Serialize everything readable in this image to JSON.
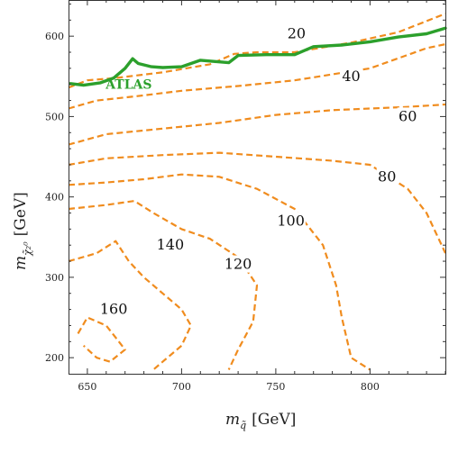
{
  "chart_data": {
    "type": "line",
    "title": "",
    "xlabel": "m",
    "xlabel_sub": "q̃",
    "xlabel_unit": "[GeV]",
    "ylabel": "m",
    "ylabel_sub": "χ̃₂⁰",
    "ylabel_unit": "[GeV]",
    "xlim": [
      640,
      840
    ],
    "ylim": [
      180,
      645
    ],
    "x_ticks": [
      650,
      700,
      750,
      800
    ],
    "y_ticks": [
      200,
      300,
      400,
      500,
      600
    ],
    "grid": false,
    "colors": {
      "contour": "#f08c1e",
      "atlas": "#2ca02c"
    },
    "contours": [
      {
        "label": "20",
        "label_at": [
          761,
          603
        ],
        "points": [
          [
            640,
            536
          ],
          [
            650,
            545
          ],
          [
            665,
            548
          ],
          [
            690,
            555
          ],
          [
            715,
            565
          ],
          [
            728,
            578
          ],
          [
            740,
            580
          ],
          [
            760,
            580
          ],
          [
            790,
            592
          ],
          [
            815,
            605
          ],
          [
            840,
            628
          ]
        ]
      },
      {
        "label": "40",
        "label_at": [
          790,
          550
        ],
        "points": [
          [
            640,
            510
          ],
          [
            655,
            520
          ],
          [
            675,
            525
          ],
          [
            700,
            532
          ],
          [
            730,
            538
          ],
          [
            760,
            545
          ],
          [
            800,
            560
          ],
          [
            830,
            585
          ],
          [
            840,
            590
          ]
        ]
      },
      {
        "label": "60",
        "label_at": [
          820,
          500
        ],
        "points": [
          [
            640,
            465
          ],
          [
            660,
            478
          ],
          [
            690,
            485
          ],
          [
            720,
            492
          ],
          [
            750,
            502
          ],
          [
            780,
            508
          ],
          [
            800,
            510
          ],
          [
            820,
            512
          ],
          [
            840,
            515
          ]
        ]
      },
      {
        "label": "80",
        "label_at": [
          809,
          425
        ],
        "points": [
          [
            640,
            440
          ],
          [
            660,
            448
          ],
          [
            690,
            452
          ],
          [
            720,
            455
          ],
          [
            750,
            450
          ],
          [
            780,
            445
          ],
          [
            800,
            440
          ],
          [
            820,
            410
          ],
          [
            830,
            380
          ],
          [
            840,
            330
          ]
        ]
      },
      {
        "label": "100",
        "label_at": [
          758,
          370
        ],
        "points": [
          [
            640,
            415
          ],
          [
            660,
            418
          ],
          [
            680,
            422
          ],
          [
            700,
            428
          ],
          [
            720,
            425
          ],
          [
            740,
            410
          ],
          [
            760,
            385
          ],
          [
            775,
            340
          ],
          [
            782,
            290
          ],
          [
            785,
            250
          ],
          [
            790,
            200
          ],
          [
            800,
            185
          ]
        ]
      },
      {
        "label": "120",
        "label_at": [
          730,
          316
        ],
        "points": [
          [
            640,
            385
          ],
          [
            660,
            390
          ],
          [
            675,
            395
          ],
          [
            685,
            380
          ],
          [
            700,
            360
          ],
          [
            715,
            348
          ],
          [
            730,
            325
          ],
          [
            740,
            290
          ],
          [
            738,
            245
          ],
          [
            730,
            210
          ],
          [
            725,
            185
          ]
        ]
      },
      {
        "label": "140",
        "label_at": [
          694,
          340
        ],
        "points": [
          [
            640,
            320
          ],
          [
            655,
            330
          ],
          [
            665,
            345
          ],
          [
            672,
            320
          ],
          [
            680,
            300
          ],
          [
            690,
            280
          ],
          [
            700,
            260
          ],
          [
            705,
            240
          ],
          [
            700,
            215
          ],
          [
            690,
            195
          ],
          [
            685,
            185
          ]
        ]
      },
      {
        "label": "160",
        "label_at": [
          664,
          260
        ],
        "points": [
          [
            645,
            230
          ],
          [
            650,
            250
          ],
          [
            660,
            240
          ],
          [
            665,
            225
          ],
          [
            670,
            210
          ],
          [
            662,
            195
          ],
          [
            655,
            200
          ],
          [
            648,
            215
          ]
        ]
      }
    ],
    "atlas": {
      "label": "ATLAS",
      "label_at": [
        672,
        540
      ],
      "points": [
        [
          641,
          541
        ],
        [
          648,
          539
        ],
        [
          657,
          542
        ],
        [
          664,
          548
        ],
        [
          670,
          560
        ],
        [
          674,
          572
        ],
        [
          677,
          566
        ],
        [
          684,
          562
        ],
        [
          690,
          561
        ],
        [
          700,
          562
        ],
        [
          710,
          570
        ],
        [
          720,
          568
        ],
        [
          725,
          567
        ],
        [
          730,
          576
        ],
        [
          745,
          577
        ],
        [
          760,
          577
        ],
        [
          770,
          587
        ],
        [
          785,
          589
        ],
        [
          800,
          593
        ],
        [
          815,
          599
        ],
        [
          830,
          603
        ],
        [
          840,
          610
        ]
      ]
    }
  }
}
